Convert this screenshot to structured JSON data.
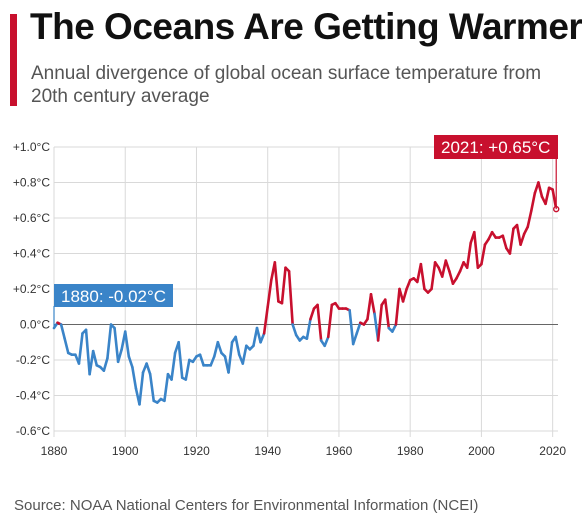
{
  "header": {
    "title": "The Oceans Are Getting Warmer",
    "subtitle": "Annual divergence of global ocean surface temperature from 20th century average"
  },
  "footer": {
    "source": "Source: NOAA National Centers for Environmental Information (NCEI)"
  },
  "colors": {
    "accent": "#c8102e",
    "cool_series": "#3a84c8",
    "warm_series": "#c8102e",
    "grid": "#d9d9d9",
    "zero_line": "#666666"
  },
  "chart_data": {
    "type": "line",
    "title": "The Oceans Are Getting Warmer",
    "subtitle": "Annual divergence of global ocean surface temperature from 20th century average",
    "xlabel": "",
    "ylabel": "",
    "xlim": [
      1880,
      2021
    ],
    "ylim": [
      -0.65,
      1.0
    ],
    "x_ticks": [
      1880,
      1900,
      1920,
      1940,
      1960,
      1980,
      2000,
      2020
    ],
    "y_ticks": [
      -0.6,
      -0.4,
      -0.2,
      0.0,
      0.2,
      0.4,
      0.6,
      0.8,
      1.0
    ],
    "y_tick_labels": [
      "-0.6°C",
      "-0.4°C",
      "-0.2°C",
      "0.0°C",
      "+0.2°C",
      "+0.4°C",
      "+0.6°C",
      "+0.8°C",
      "+1.0°C"
    ],
    "grid": true,
    "color_rule": "blue where value is below the 20th century average, red where above",
    "annotations": [
      {
        "label": "1880: -0.02°C",
        "year": 1880,
        "value": -0.02
      },
      {
        "label": "2021: +0.65°C",
        "year": 2021,
        "value": 0.65
      }
    ],
    "series": [
      {
        "start_year": 1880,
        "values": [
          -0.02,
          0.01,
          0.0,
          -0.08,
          -0.16,
          -0.17,
          -0.17,
          -0.22,
          -0.05,
          -0.03,
          -0.28,
          -0.15,
          -0.23,
          -0.24,
          -0.26,
          -0.19,
          0.0,
          -0.02,
          -0.21,
          -0.14,
          -0.04,
          -0.18,
          -0.24,
          -0.36,
          -0.45,
          -0.27,
          -0.22,
          -0.28,
          -0.43,
          -0.44,
          -0.42,
          -0.43,
          -0.28,
          -0.31,
          -0.16,
          -0.1,
          -0.3,
          -0.31,
          -0.2,
          -0.21,
          -0.18,
          -0.17,
          -0.23,
          -0.23,
          -0.23,
          -0.18,
          -0.1,
          -0.16,
          -0.18,
          -0.27,
          -0.1,
          -0.07,
          -0.17,
          -0.22,
          -0.12,
          -0.14,
          -0.12,
          -0.02,
          -0.1,
          -0.05,
          0.1,
          0.25,
          0.35,
          0.13,
          0.12,
          0.32,
          0.3,
          0.0,
          -0.06,
          -0.09,
          -0.07,
          -0.08,
          0.03,
          0.09,
          0.11,
          -0.09,
          -0.12,
          -0.07,
          0.11,
          0.12,
          0.09,
          0.09,
          0.09,
          0.08,
          -0.11,
          -0.05,
          0.01,
          0.0,
          0.03,
          0.17,
          0.06,
          -0.09,
          0.11,
          0.14,
          -0.02,
          -0.04,
          0.0,
          0.2,
          0.13,
          0.2,
          0.25,
          0.26,
          0.24,
          0.34,
          0.2,
          0.18,
          0.2,
          0.35,
          0.32,
          0.27,
          0.36,
          0.3,
          0.23,
          0.26,
          0.3,
          0.35,
          0.32,
          0.46,
          0.52,
          0.32,
          0.34,
          0.45,
          0.48,
          0.52,
          0.49,
          0.49,
          0.5,
          0.43,
          0.4,
          0.54,
          0.56,
          0.45,
          0.51,
          0.55,
          0.64,
          0.74,
          0.8,
          0.72,
          0.68,
          0.77,
          0.76,
          0.65
        ]
      }
    ]
  }
}
